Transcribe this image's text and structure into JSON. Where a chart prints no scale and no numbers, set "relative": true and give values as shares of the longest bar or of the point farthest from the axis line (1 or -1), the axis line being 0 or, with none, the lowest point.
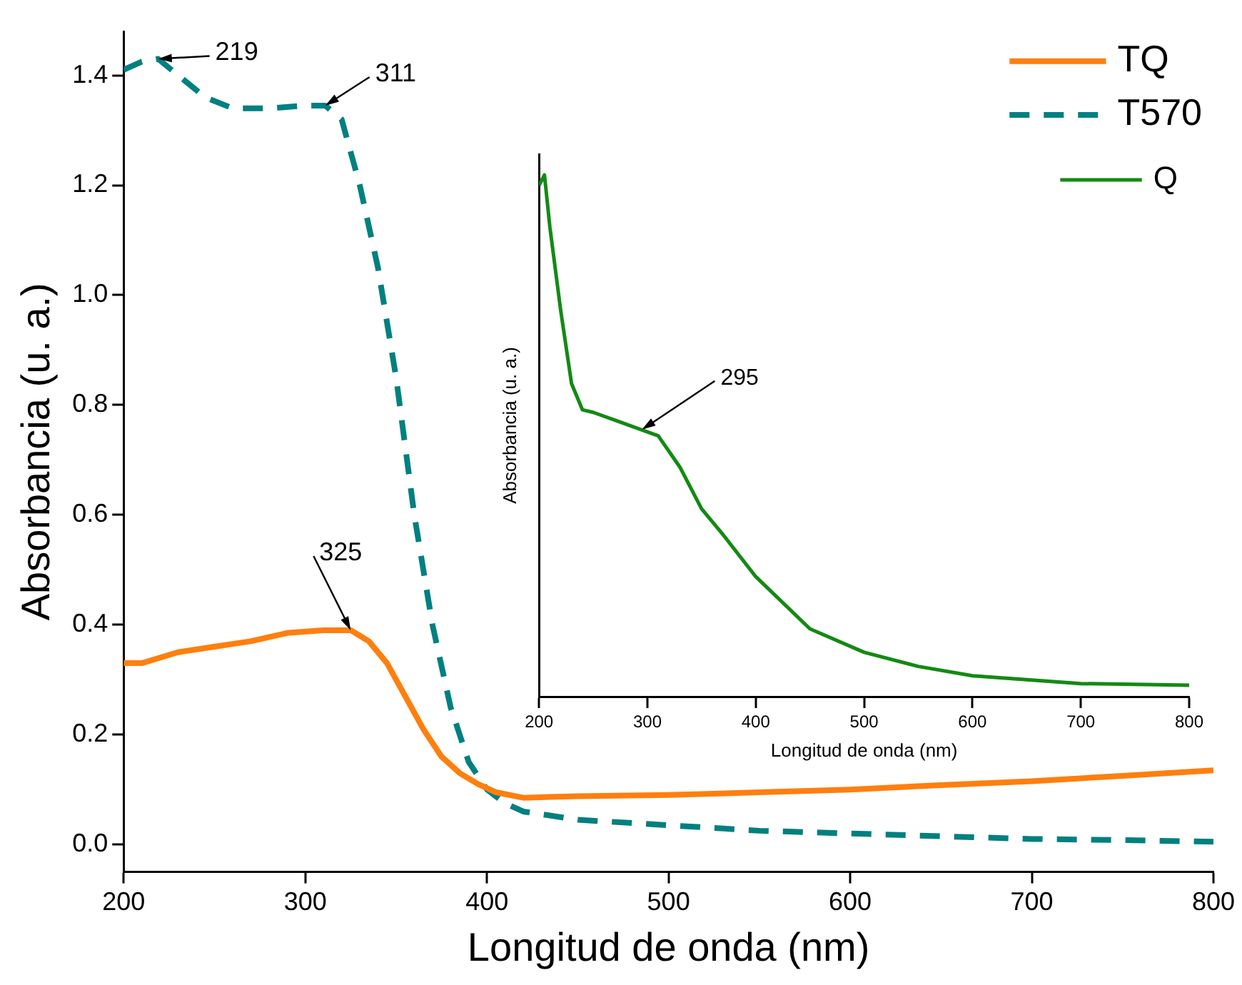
{
  "chart_data": [
    {
      "type": "line",
      "xlabel": "Longitud de onda (nm)",
      "ylabel": "Absorbancia (u. a.)",
      "xlim": [
        200,
        800
      ],
      "xticks": [
        200,
        300,
        400,
        500,
        600,
        700,
        800
      ],
      "ylim": [
        -0.05,
        1.48
      ],
      "yticks": [
        {
          "value": 0,
          "label": "0.0"
        },
        0.2,
        0.4,
        0.6,
        0.8,
        {
          "value": 1,
          "label": "1.0"
        },
        1.2,
        1.4
      ],
      "legend": "top right",
      "grid": false,
      "series": [
        {
          "name": "TQ",
          "color": "#ff7f0e",
          "line_style": "solid",
          "x": [
            200,
            210,
            230,
            250,
            270,
            290,
            310,
            325,
            335,
            345,
            355,
            365,
            375,
            385,
            395,
            405,
            420,
            450,
            500,
            550,
            600,
            650,
            700,
            750,
            800
          ],
          "values": [
            0.33,
            0.33,
            0.35,
            0.36,
            0.37,
            0.385,
            0.39,
            0.39,
            0.37,
            0.33,
            0.27,
            0.21,
            0.16,
            0.13,
            0.11,
            0.095,
            0.085,
            0.088,
            0.09,
            0.095,
            0.1,
            0.108,
            0.115,
            0.125,
            0.135
          ]
        },
        {
          "name": "T570",
          "color": "#008080",
          "line_style": "dashed",
          "x": [
            200,
            210,
            219,
            230,
            245,
            260,
            280,
            300,
            311,
            320,
            330,
            340,
            350,
            360,
            370,
            380,
            390,
            400,
            410,
            420,
            450,
            500,
            550,
            600,
            650,
            700,
            750,
            800
          ],
          "values": [
            1.41,
            1.425,
            1.43,
            1.4,
            1.36,
            1.34,
            1.34,
            1.345,
            1.345,
            1.32,
            1.2,
            1.05,
            0.85,
            0.6,
            0.4,
            0.25,
            0.15,
            0.1,
            0.075,
            0.06,
            0.045,
            0.035,
            0.025,
            0.02,
            0.015,
            0.01,
            0.008,
            0.005
          ]
        }
      ],
      "annotations": [
        {
          "text": "219",
          "x": 219,
          "y": 1.43
        },
        {
          "text": "311",
          "x": 311,
          "y": 1.345
        },
        {
          "text": "325",
          "x": 325,
          "y": 0.39
        }
      ]
    },
    {
      "type": "line",
      "relative": true,
      "xlabel": "Longitud de onda (nm)",
      "ylabel": "Absorbancia (u. a.)",
      "xlim": [
        200,
        800
      ],
      "xticks": [
        200,
        300,
        400,
        500,
        600,
        700,
        800
      ],
      "legend": "top right",
      "grid": false,
      "series": [
        {
          "name": "Q",
          "color": "#138a13",
          "line_style": "solid",
          "x": [
            200,
            205,
            210,
            220,
            230,
            240,
            250,
            270,
            290,
            310,
            330,
            350,
            370,
            400,
            450,
            500,
            550,
            600,
            700,
            800
          ],
          "values": [
            0.98,
            1.0,
            0.9,
            0.74,
            0.6,
            0.55,
            0.545,
            0.53,
            0.515,
            0.5,
            0.44,
            0.36,
            0.31,
            0.23,
            0.13,
            0.085,
            0.058,
            0.04,
            0.025,
            0.022
          ]
        }
      ],
      "annotations": [
        {
          "text": "295",
          "x": 295,
          "y": 0.512
        }
      ]
    }
  ]
}
